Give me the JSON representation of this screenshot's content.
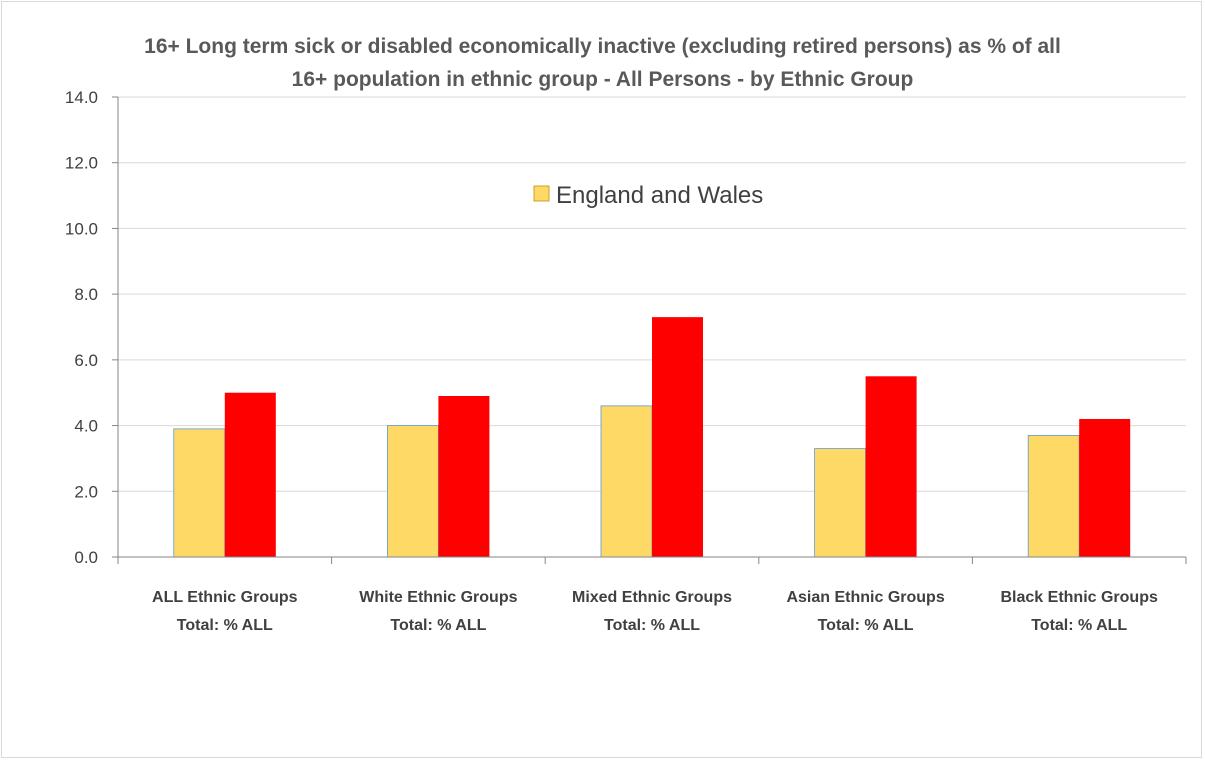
{
  "chart_data": {
    "type": "bar",
    "title_lines": [
      "16+ Long term sick or disabled economically inactive (excluding retired persons) as % of all",
      "16+ population in ethnic group  - All Persons - by Ethnic Group"
    ],
    "categories": [
      [
        "ALL Ethnic Groups",
        "Total: % ALL"
      ],
      [
        "White Ethnic Groups",
        "Total: % ALL"
      ],
      [
        "Mixed Ethnic Groups",
        "Total:  % ALL"
      ],
      [
        "Asian Ethnic Groups",
        "Total: % ALL"
      ],
      [
        "Black Ethnic  Groups",
        "Total: % ALL"
      ]
    ],
    "series": [
      {
        "name": "England and Wales",
        "color": "#FFD966",
        "stroke": "#5b9bd5",
        "values": [
          3.9,
          4.0,
          4.6,
          3.3,
          3.7
        ]
      },
      {
        "name": "",
        "color": "#FF0000",
        "stroke": "none",
        "values": [
          5.0,
          4.9,
          7.3,
          5.5,
          4.2
        ]
      }
    ],
    "ylim": [
      0,
      14
    ],
    "yticks": [
      "0.0",
      "2.0",
      "4.0",
      "6.0",
      "8.0",
      "10.0",
      "12.0",
      "14.0"
    ],
    "grid": true,
    "legend": {
      "position": "top-center",
      "entries": [
        "England and Wales"
      ]
    }
  }
}
